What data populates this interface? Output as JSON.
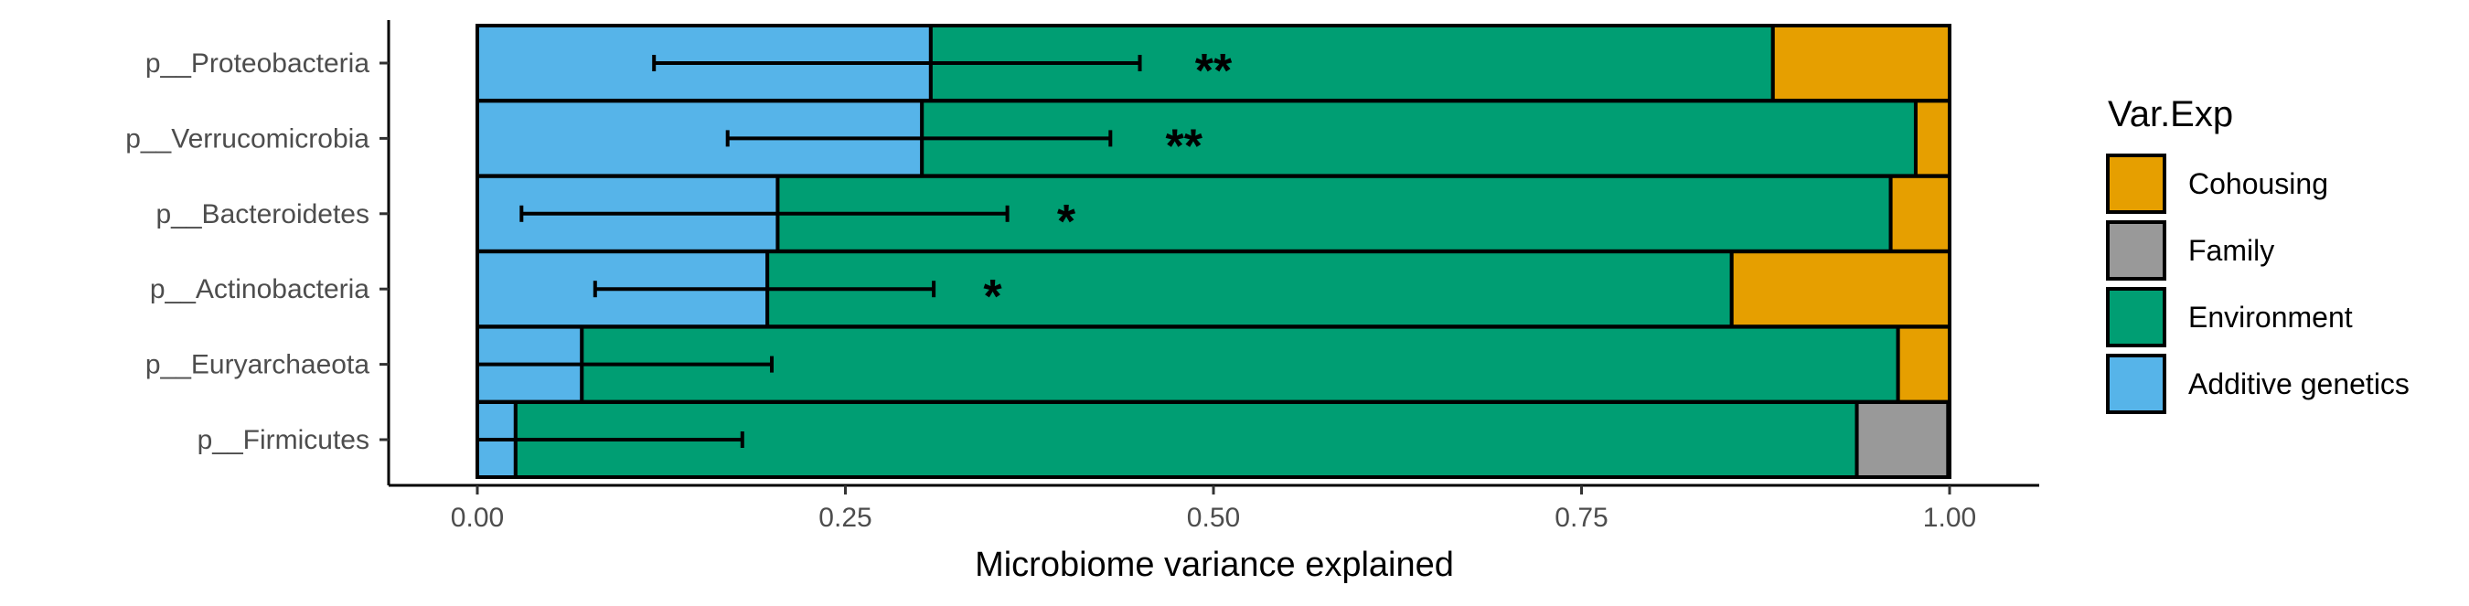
{
  "colors": {
    "Cohousing": "#E69F00",
    "Family": "#999999",
    "Environment": "#009E73",
    "Additive genetics": "#56B4E9",
    "outline": "#000000"
  },
  "chart_data": {
    "type": "bar",
    "orientation": "horizontal",
    "stacked": true,
    "xlabel": "Microbiome variance explained",
    "ylabel": "",
    "xlim": [
      0,
      1
    ],
    "xticks": [
      "0.00",
      "0.25",
      "0.50",
      "0.75",
      "1.00"
    ],
    "grid": false,
    "legend_position": "right",
    "legend": {
      "title": "Var.Exp",
      "entries": [
        "Cohousing",
        "Family",
        "Environment",
        "Additive genetics"
      ]
    },
    "categories": [
      "p__Proteobacteria",
      "p__Verrucomicrobia",
      "p__Bacteroidetes",
      "p__Actinobacteria",
      "p__Euryarchaeota",
      "p__Firmicutes"
    ],
    "series": [
      {
        "name": "Additive genetics",
        "values": [
          0.308,
          0.302,
          0.204,
          0.197,
          0.071,
          0.026
        ]
      },
      {
        "name": "Environment",
        "values": [
          0.572,
          0.675,
          0.756,
          0.655,
          0.894,
          0.911
        ]
      },
      {
        "name": "Family",
        "values": [
          0.0,
          0.0,
          0.0,
          0.0,
          0.0,
          0.062
        ]
      },
      {
        "name": "Cohousing",
        "values": [
          0.12,
          0.023,
          0.04,
          0.148,
          0.035,
          0.001
        ]
      }
    ],
    "error_bars": [
      {
        "category": "p__Proteobacteria",
        "low": 0.12,
        "high": 0.45
      },
      {
        "category": "p__Verrucomicrobia",
        "low": 0.17,
        "high": 0.43
      },
      {
        "category": "p__Bacteroidetes",
        "low": 0.03,
        "high": 0.36
      },
      {
        "category": "p__Actinobacteria",
        "low": 0.08,
        "high": 0.31
      },
      {
        "category": "p__Euryarchaeota",
        "low": 0.0,
        "high": 0.2
      },
      {
        "category": "p__Firmicutes",
        "low": 0.0,
        "high": 0.18
      }
    ],
    "annotations": [
      {
        "category": "p__Proteobacteria",
        "text": "**",
        "x": 0.5
      },
      {
        "category": "p__Verrucomicrobia",
        "text": "**",
        "x": 0.48
      },
      {
        "category": "p__Bacteroidetes",
        "text": "*",
        "x": 0.4
      },
      {
        "category": "p__Actinobacteria",
        "text": "*",
        "x": 0.35
      }
    ]
  }
}
